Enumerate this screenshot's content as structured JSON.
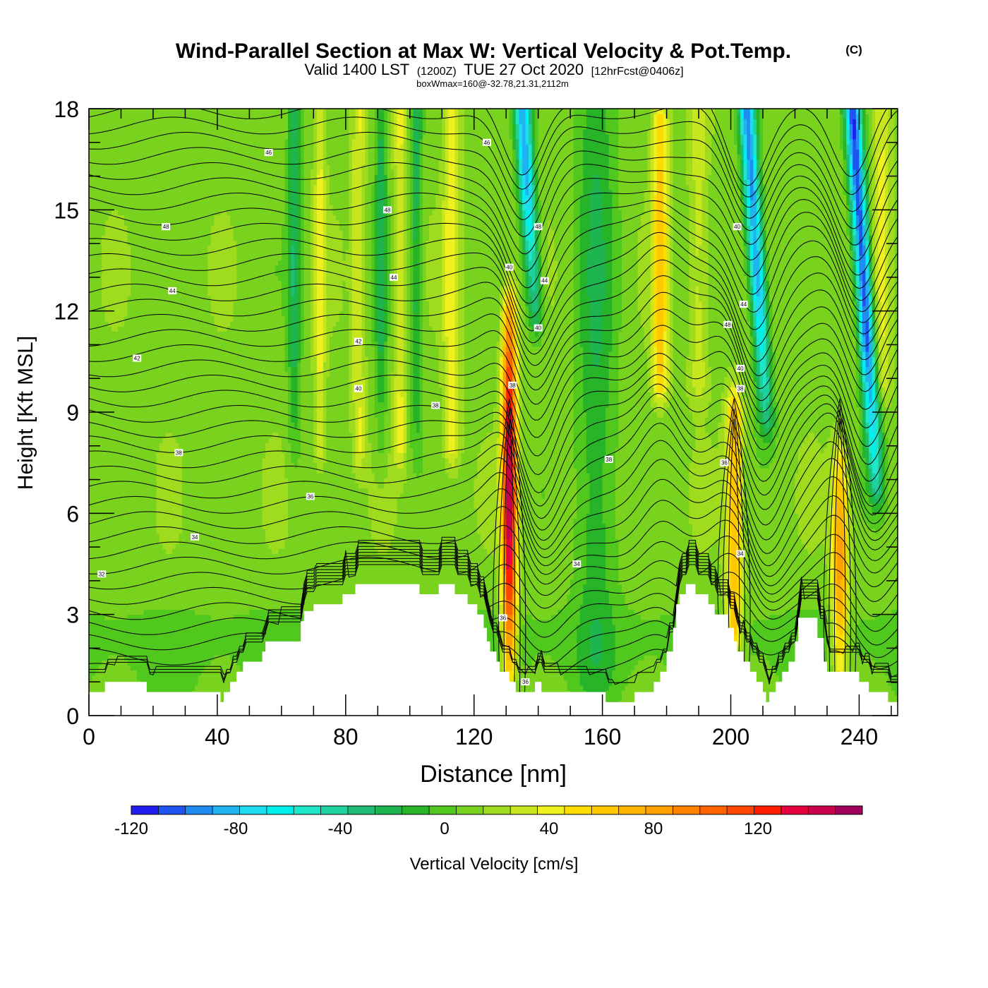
{
  "chart_data": {
    "type": "heatmap",
    "title": "Wind-Parallel Section at Max W: Vertical Velocity & Pot.Temp.",
    "copyright": "(C)",
    "subtitle": {
      "prefix": "Valid 1400 LST",
      "zulu": "(1200Z)",
      "date": "TUE 27 Oct 2020",
      "forecast": "[12hrFcst@0406z]"
    },
    "info_line": "boxWmax=160@-32.78,21.31,2112m",
    "xlabel": "Distance [nm]",
    "ylabel": "Height [Kft MSL]",
    "xlim": [
      0,
      252
    ],
    "ylim": [
      0,
      18
    ],
    "x_ticks": [
      "0",
      "40",
      "80",
      "120",
      "160",
      "200",
      "240"
    ],
    "y_ticks": [
      "0",
      "3",
      "6",
      "9",
      "12",
      "15",
      "18"
    ],
    "colorbar": {
      "label": "Vertical Velocity [cm/s]",
      "ticks": [
        "-120",
        "-80",
        "-40",
        "0",
        "40",
        "80",
        "120"
      ],
      "min": -120,
      "max": 150,
      "step": 10,
      "colors": [
        "#1e1ef0",
        "#1e55f0",
        "#1e8cf0",
        "#1eb4f0",
        "#1edcf0",
        "#00f0f0",
        "#1ee6c8",
        "#1ed2a0",
        "#1ebe78",
        "#1eb450",
        "#28b428",
        "#50c81e",
        "#78d21e",
        "#a0dc1e",
        "#c8e61e",
        "#f0f01e",
        "#ffdc00",
        "#ffc800",
        "#ffb400",
        "#ffa000",
        "#ff8200",
        "#ff6400",
        "#ff4600",
        "#ff1e00",
        "#e6003c",
        "#c8004b",
        "#a0005a"
      ]
    },
    "terrain_kft": [
      [
        0,
        0.7
      ],
      [
        4,
        0.7
      ],
      [
        5,
        1.0
      ],
      [
        16,
        1.0
      ],
      [
        18,
        0.7
      ],
      [
        40,
        0.7
      ],
      [
        41,
        0.4
      ],
      [
        42,
        0.7
      ],
      [
        44,
        1.0
      ],
      [
        46,
        1.3
      ],
      [
        48,
        1.6
      ],
      [
        54,
        1.9
      ],
      [
        55,
        2.2
      ],
      [
        64,
        2.2
      ],
      [
        66,
        2.8
      ],
      [
        67,
        3.1
      ],
      [
        70,
        3.3
      ],
      [
        78,
        3.3
      ],
      [
        79,
        3.6
      ],
      [
        82,
        3.6
      ],
      [
        83,
        3.9
      ],
      [
        102,
        3.9
      ],
      [
        103,
        3.6
      ],
      [
        108,
        3.6
      ],
      [
        109,
        3.9
      ],
      [
        113,
        3.9
      ],
      [
        114,
        3.6
      ],
      [
        117,
        3.6
      ],
      [
        118,
        3.3
      ],
      [
        120,
        3.3
      ],
      [
        121,
        3.0
      ],
      [
        123,
        2.6
      ],
      [
        124,
        2.2
      ],
      [
        125,
        1.9
      ],
      [
        127,
        1.6
      ],
      [
        128,
        1.3
      ],
      [
        130,
        1.3
      ],
      [
        131,
        1.0
      ],
      [
        133,
        0.7
      ],
      [
        137,
        0.7
      ],
      [
        139,
        1.0
      ],
      [
        141,
        0.7
      ],
      [
        160,
        0.7
      ],
      [
        161,
        0.4
      ],
      [
        168,
        0.4
      ],
      [
        170,
        0.7
      ],
      [
        174,
        0.7
      ],
      [
        176,
        1.0
      ],
      [
        178,
        1.3
      ],
      [
        180,
        1.9
      ],
      [
        182,
        2.6
      ],
      [
        183,
        3.3
      ],
      [
        184,
        3.6
      ],
      [
        186,
        3.9
      ],
      [
        188,
        3.9
      ],
      [
        189,
        3.6
      ],
      [
        192,
        3.6
      ],
      [
        193,
        3.3
      ],
      [
        195,
        3.0
      ],
      [
        198,
        3.0
      ],
      [
        199,
        2.6
      ],
      [
        201,
        2.2
      ],
      [
        202,
        1.9
      ],
      [
        204,
        1.6
      ],
      [
        206,
        1.3
      ],
      [
        208,
        1.0
      ],
      [
        210,
        0.7
      ],
      [
        211,
        0.4
      ],
      [
        212,
        0.7
      ],
      [
        214,
        1.0
      ],
      [
        216,
        1.3
      ],
      [
        218,
        1.6
      ],
      [
        220,
        2.2
      ],
      [
        221,
        2.9
      ],
      [
        226,
        2.9
      ],
      [
        227,
        2.3
      ],
      [
        229,
        1.6
      ],
      [
        230,
        1.3
      ],
      [
        238,
        1.3
      ],
      [
        240,
        1.0
      ],
      [
        243,
        0.7
      ],
      [
        248,
        0.7
      ],
      [
        249,
        0.4
      ],
      [
        252,
        0.4
      ]
    ],
    "updraft_bands": [
      {
        "x": 131,
        "half_width": 2.2,
        "z_bottom": 1.5,
        "z_top": 12.0,
        "peak": 135
      },
      {
        "x": 178,
        "half_width": 2.5,
        "z_bottom": 10.0,
        "z_top": 17.5,
        "peak": 45
      },
      {
        "x": 201,
        "half_width": 2.5,
        "z_bottom": 2.5,
        "z_top": 8.8,
        "peak": 55
      },
      {
        "x": 234,
        "half_width": 2.5,
        "z_bottom": 1.5,
        "z_top": 7.5,
        "peak": 70
      },
      {
        "x": 84,
        "half_width": 2.0,
        "z_bottom": 8.0,
        "z_top": 18.0,
        "peak": 25
      },
      {
        "x": 97,
        "half_width": 2.0,
        "z_bottom": 8.0,
        "z_top": 18.0,
        "peak": 25
      },
      {
        "x": 72,
        "half_width": 1.8,
        "z_bottom": 8.0,
        "z_top": 18.0,
        "peak": 25
      },
      {
        "x": 113,
        "half_width": 2.5,
        "z_bottom": 8.0,
        "z_top": 18.0,
        "peak": 30
      },
      {
        "x": 190,
        "half_width": 3.0,
        "z_bottom": 10.0,
        "z_top": 18.0,
        "peak": 20
      },
      {
        "x": 247,
        "half_width": 3.0,
        "z_bottom": 10.0,
        "z_top": 18.0,
        "peak": 25
      }
    ],
    "downdraft_bands": [
      {
        "x": 135,
        "half_width": 2.5,
        "z_bottom": 12.0,
        "z_top": 18.0,
        "peak": -95,
        "tilt": 0.55
      },
      {
        "x": 205,
        "half_width": 2.5,
        "z_bottom": 9.0,
        "z_top": 18.0,
        "peak": -100,
        "tilt": 0.55
      },
      {
        "x": 238,
        "half_width": 2.5,
        "z_bottom": 7.0,
        "z_top": 18.0,
        "peak": -115,
        "tilt": 0.55
      },
      {
        "x": 64,
        "half_width": 2.0,
        "z_bottom": 8.0,
        "z_top": 18.0,
        "peak": -35,
        "tilt": 0.0
      },
      {
        "x": 91,
        "half_width": 1.8,
        "z_bottom": 8.0,
        "z_top": 18.0,
        "peak": -30,
        "tilt": 0.0
      },
      {
        "x": 102,
        "half_width": 1.8,
        "z_bottom": 8.0,
        "z_top": 18.0,
        "peak": -30,
        "tilt": 0.0
      },
      {
        "x": 158,
        "half_width": 6.0,
        "z_bottom": 1.0,
        "z_top": 9.0,
        "peak": -25,
        "tilt": 0.0
      }
    ],
    "isentrope_labels": [
      {
        "x": 124,
        "z": 17.0,
        "text": "46"
      },
      {
        "x": 56,
        "z": 16.7,
        "text": "46"
      },
      {
        "x": 93,
        "z": 15.0,
        "text": "48"
      },
      {
        "x": 24,
        "z": 14.5,
        "text": "48"
      },
      {
        "x": 140,
        "z": 14.5,
        "text": "48"
      },
      {
        "x": 202,
        "z": 14.5,
        "text": "40"
      },
      {
        "x": 131,
        "z": 13.3,
        "text": "40"
      },
      {
        "x": 95,
        "z": 13.0,
        "text": "44"
      },
      {
        "x": 142,
        "z": 12.9,
        "text": "44"
      },
      {
        "x": 26,
        "z": 12.6,
        "text": "44"
      },
      {
        "x": 204,
        "z": 12.2,
        "text": "44"
      },
      {
        "x": 199,
        "z": 11.6,
        "text": "48"
      },
      {
        "x": 140,
        "z": 11.5,
        "text": "40"
      },
      {
        "x": 84,
        "z": 11.1,
        "text": "42"
      },
      {
        "x": 15,
        "z": 10.6,
        "text": "42"
      },
      {
        "x": 203,
        "z": 10.3,
        "text": "40"
      },
      {
        "x": 132,
        "z": 9.8,
        "text": "38"
      },
      {
        "x": 84,
        "z": 9.7,
        "text": "40"
      },
      {
        "x": 203,
        "z": 9.7,
        "text": "38"
      },
      {
        "x": 108,
        "z": 9.2,
        "text": "38"
      },
      {
        "x": 28,
        "z": 7.8,
        "text": "38"
      },
      {
        "x": 162,
        "z": 7.6,
        "text": "38"
      },
      {
        "x": 198,
        "z": 7.5,
        "text": "36"
      },
      {
        "x": 69,
        "z": 6.5,
        "text": "36"
      },
      {
        "x": 33,
        "z": 5.3,
        "text": "34"
      },
      {
        "x": 203,
        "z": 4.8,
        "text": "34"
      },
      {
        "x": 152,
        "z": 4.5,
        "text": "34"
      },
      {
        "x": 4,
        "z": 4.2,
        "text": "32"
      },
      {
        "x": 129,
        "z": 2.9,
        "text": "36"
      },
      {
        "x": 136,
        "z": 1.0,
        "text": "36"
      }
    ]
  }
}
